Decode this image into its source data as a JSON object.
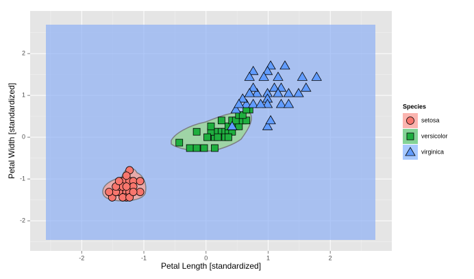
{
  "chart_data": {
    "type": "scatter",
    "x_label": "Petal Length [standardized]",
    "y_label": "Petal Width [standardized]",
    "legend_title": "Species",
    "legend_position": "right",
    "grid": true,
    "xlim": [
      -2.83,
      2.99
    ],
    "ylim": [
      -2.72,
      3.02
    ],
    "xticks": [
      -2,
      -1,
      0,
      1,
      2
    ],
    "yticks": [
      -2,
      -1,
      0,
      1,
      2
    ],
    "series": [
      {
        "name": "setosa",
        "color": "#F8766D",
        "shape": "circle",
        "x": [
          -1.34,
          -1.4,
          -1.28,
          -1.28,
          -1.34,
          -1.23,
          -1.51,
          -1.45,
          -1.56,
          -1.4,
          -1.23,
          -1.17,
          -1.06,
          -1.06,
          -1.17,
          -1.23,
          -1.34,
          -1.28,
          -1.45,
          -1.34,
          -1.23,
          -1.17,
          -1.28,
          -1.4
        ],
        "y": [
          -1.31,
          -1.31,
          -1.31,
          -1.44,
          -1.05,
          -1.31,
          -1.44,
          -1.31,
          -1.31,
          -1.18,
          -1.05,
          -1.05,
          -1.05,
          -1.31,
          -1.18,
          -0.79,
          -1.18,
          -1.18,
          -1.18,
          -1.44,
          -1.44,
          -1.31,
          -0.92,
          -1.05
        ]
      },
      {
        "name": "versicolor",
        "color": "#1FAF3F",
        "shape": "square",
        "x": [
          -0.43,
          -0.26,
          -0.15,
          -0.15,
          -0.03,
          0.14,
          0.14,
          0.08,
          0.19,
          0.25,
          0.31,
          0.36,
          0.42,
          0.14,
          0.42,
          0.48,
          0.53,
          0.36,
          0.42,
          0.48,
          0.59,
          0.65,
          0.53,
          0.7,
          0.59,
          0.31,
          0.02,
          0.25,
          0.08,
          0.65,
          0.19,
          0.36
        ],
        "y": [
          -0.13,
          -0.26,
          -0.26,
          0.13,
          -0.26,
          0.0,
          0.13,
          0.13,
          0.13,
          0.13,
          0.13,
          0.13,
          0.13,
          -0.26,
          0.26,
          0.26,
          0.26,
          0.26,
          0.4,
          0.4,
          0.4,
          0.4,
          0.53,
          0.66,
          0.53,
          0.0,
          0.0,
          0.4,
          0.26,
          0.66,
          0.0,
          0.0
        ]
      },
      {
        "name": "virginica",
        "color": "#619CFF",
        "shape": "triangle",
        "x": [
          1.27,
          1.04,
          0.76,
          0.99,
          1.16,
          0.7,
          0.93,
          1.1,
          1.21,
          1.61,
          1.33,
          0.82,
          0.76,
          0.99,
          1.16,
          0.7,
          0.99,
          0.65,
          0.76,
          0.99,
          1.21,
          1.33,
          0.88,
          0.48,
          0.59,
          0.53,
          0.42,
          0.99,
          1.04,
          1.78,
          1.49,
          1.55
        ],
        "y": [
          1.71,
          1.71,
          1.58,
          1.58,
          1.44,
          1.44,
          1.44,
          1.18,
          1.18,
          1.18,
          1.05,
          1.05,
          1.18,
          1.05,
          1.05,
          1.05,
          0.92,
          0.79,
          0.79,
          0.79,
          0.79,
          0.79,
          0.79,
          0.66,
          0.92,
          0.79,
          0.26,
          0.26,
          0.4,
          1.44,
          1.05,
          1.44
        ]
      }
    ]
  }
}
